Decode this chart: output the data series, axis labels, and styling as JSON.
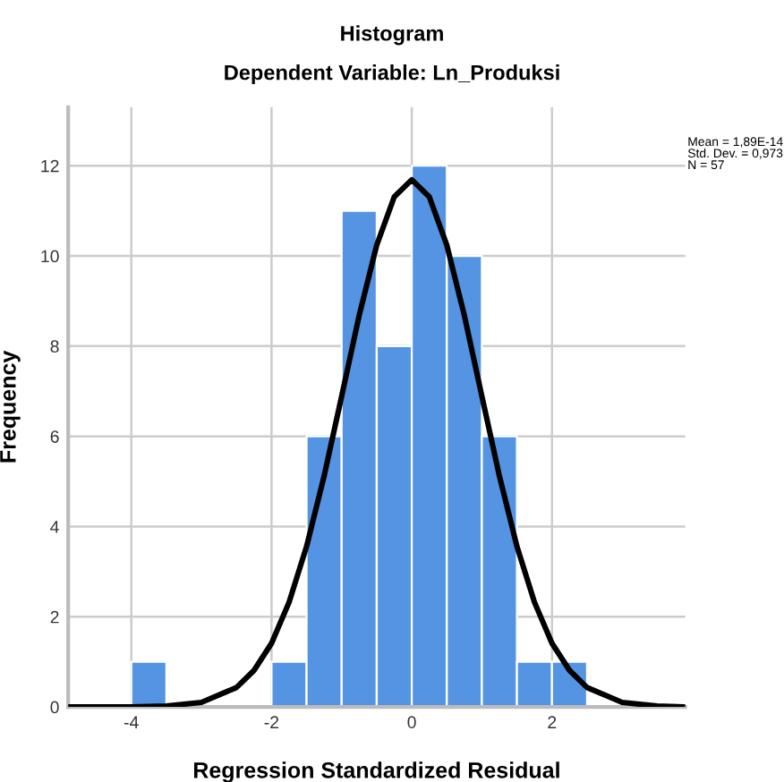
{
  "chart_data": {
    "type": "histogram",
    "title": "Histogram",
    "subtitle": "Dependent Variable: Ln_Produksi",
    "xlabel": "Regression Standardized Residual",
    "ylabel": "Frequency",
    "series": [
      {
        "color": "#5594e2",
        "bins": [
          -4,
          -3.5,
          -3,
          -2.5,
          -2,
          -1.5,
          -1,
          -0.5,
          0,
          0.5,
          1,
          1.5,
          2,
          2.5
        ],
        "values": [
          1,
          0,
          0,
          0,
          1,
          6,
          11,
          8,
          12,
          10,
          6,
          1,
          1
        ]
      },
      {
        "type": "line",
        "color": "#000000",
        "x": [
          -4.9,
          -4,
          -3.5,
          -3,
          -2.5,
          -2.25,
          -2,
          -1.75,
          -1.5,
          -1.25,
          -1,
          -0.75,
          -0.5,
          -0.25,
          0,
          0.25,
          0.5,
          0.75,
          1,
          1.25,
          1.5,
          1.75,
          2,
          2.25,
          2.5,
          3,
          3.5,
          3.9
        ],
        "values": [
          0,
          0,
          0.02,
          0.1,
          0.43,
          0.81,
          1.41,
          2.32,
          3.56,
          5.12,
          6.89,
          8.68,
          10.24,
          11.31,
          11.69,
          11.31,
          10.24,
          8.68,
          6.89,
          5.12,
          3.56,
          2.32,
          1.41,
          0.81,
          0.43,
          0.1,
          0.02,
          0
        ]
      }
    ],
    "annotations": [
      "Mean = 1,89E-14\nStd. Dev. = 0,973\nN = 57"
    ],
    "xlim": [
      -4.9,
      3.9
    ],
    "ylim": [
      0,
      13.3
    ],
    "xticks": [
      -4,
      -2,
      0,
      2
    ],
    "yticks": [
      0,
      2,
      4,
      6,
      8,
      10,
      12
    ],
    "grid": true,
    "legend": false,
    "marker": "none",
    "line_style": "solid"
  }
}
